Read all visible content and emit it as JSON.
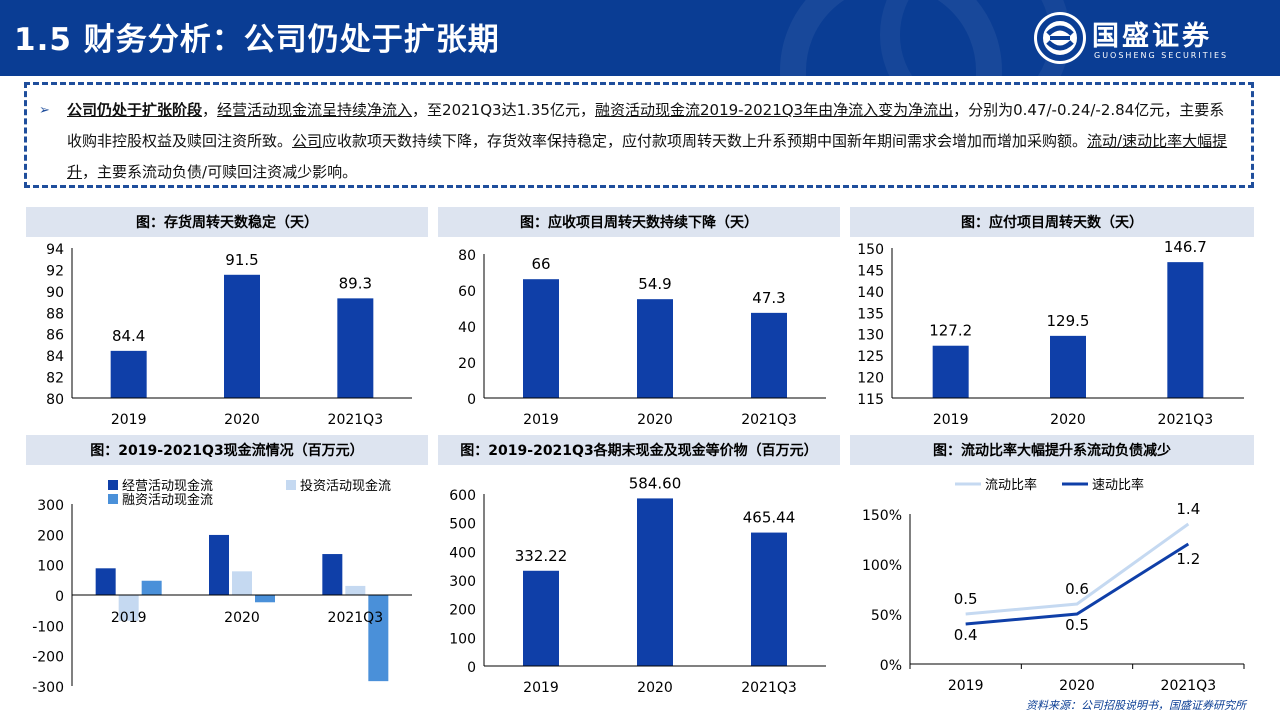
{
  "header": {
    "title": "1.5 财务分析：公司仍处于扩张期",
    "logo_cn": "国盛证券",
    "logo_en": "GUOSHENG SECURITIES"
  },
  "summary": {
    "seg1": "公司仍处于扩张阶段",
    "seg2": "，",
    "seg3": "经营活动现金流呈持续净流入",
    "seg4": "，至2021Q3达1.35亿元，",
    "seg5": "融资活动现金流2019-2021Q3年由净流入变为净流出",
    "seg6": "，分别为0.47/-0.24/-2.84亿元，主要系收购非控股权益及赎回注资所致。",
    "seg7": "公司",
    "seg8": "应收款项天数持续下降，存货效率保持稳定，应付款项周转天数上升系预期中国新年期间需求会增加而增加采购额。",
    "seg9": "流动/速动比率大幅提升",
    "seg10": "，主要系流动负债/可赎回注资减少影响。"
  },
  "panels": {
    "p1_title": "图：存货周转天数稳定（天）",
    "p2_title": "图：应收项目周转天数持续下降（天）",
    "p3_title": "图：应付项目周转天数（天）",
    "p4_title": "图：2019-2021Q3现金流情况（百万元）",
    "p5_title": "图：2019-2021Q3各期末现金及现金等价物（百万元）",
    "p6_title": "图：流动比率大幅提升系流动负债减少"
  },
  "source": "资料来源：公司招股说明书，国盛证券研究所",
  "colors": {
    "navy": "#0a3d94",
    "bar": "#0f3fa8",
    "light_blue": "#c5d9f1",
    "mid_blue": "#4a90d9"
  },
  "chart_data": [
    {
      "id": "inventory_days",
      "type": "bar",
      "categories": [
        "2019",
        "2020",
        "2021Q3"
      ],
      "values": [
        84.4,
        91.5,
        89.3
      ],
      "labels": [
        "84.4",
        "91.5",
        "89.3"
      ],
      "yticks": [
        "94",
        "92",
        "90",
        "88",
        "86",
        "84",
        "82",
        "80"
      ],
      "ylim": [
        80,
        94
      ]
    },
    {
      "id": "receivable_days",
      "type": "bar",
      "categories": [
        "2019",
        "2020",
        "2021Q3"
      ],
      "values": [
        66,
        54.9,
        47.3
      ],
      "labels": [
        "66",
        "54.9",
        "47.3"
      ],
      "yticks": [
        "80",
        "60",
        "40",
        "20",
        "0"
      ],
      "ylim": [
        0,
        80
      ]
    },
    {
      "id": "payable_days",
      "type": "bar",
      "categories": [
        "2019",
        "2020",
        "2021Q3"
      ],
      "values": [
        127.2,
        129.5,
        146.7
      ],
      "labels": [
        "127.2",
        "129.5",
        "146.7"
      ],
      "yticks": [
        "150",
        "145",
        "140",
        "135",
        "130",
        "125",
        "120",
        "115"
      ],
      "ylim": [
        115,
        150
      ]
    },
    {
      "id": "cash_flow",
      "type": "bar",
      "categories": [
        "2019",
        "2020",
        "2021Q3"
      ],
      "series": [
        {
          "name": "经营活动现金流",
          "color": "#0f3fa8",
          "values": [
            88,
            198,
            135
          ]
        },
        {
          "name": "投资活动现金流",
          "color": "#c5d9f1",
          "values": [
            -85,
            78,
            30
          ]
        },
        {
          "name": "融资活动现金流",
          "color": "#4a90d9",
          "values": [
            47,
            -24,
            -284
          ]
        }
      ],
      "yticks": [
        "300",
        "200",
        "100",
        "0",
        "-100",
        "-200",
        "-300"
      ],
      "ylim": [
        -300,
        300
      ]
    },
    {
      "id": "cash_equivalents",
      "type": "bar",
      "categories": [
        "2019",
        "2020",
        "2021Q3"
      ],
      "values": [
        332.22,
        584.6,
        465.44
      ],
      "labels": [
        "332.22",
        "584.60",
        "465.44"
      ],
      "yticks": [
        "600",
        "500",
        "400",
        "300",
        "200",
        "100",
        "0"
      ],
      "ylim": [
        0,
        600
      ]
    },
    {
      "id": "liquidity_ratios",
      "type": "line",
      "categories": [
        "2019",
        "2020",
        "2021Q3"
      ],
      "series": [
        {
          "name": "流动比率",
          "color": "#c5d9f1",
          "values": [
            0.5,
            0.6,
            1.4
          ],
          "labels": [
            "0.5",
            "0.6",
            "1.4"
          ]
        },
        {
          "name": "速动比率",
          "color": "#0f3fa8",
          "values": [
            0.4,
            0.5,
            1.2
          ],
          "labels": [
            "0.4",
            "0.5",
            "1.2"
          ]
        }
      ],
      "yticks": [
        "150%",
        "100%",
        "50%",
        "0%"
      ],
      "ylim": [
        0,
        1.5
      ]
    }
  ]
}
